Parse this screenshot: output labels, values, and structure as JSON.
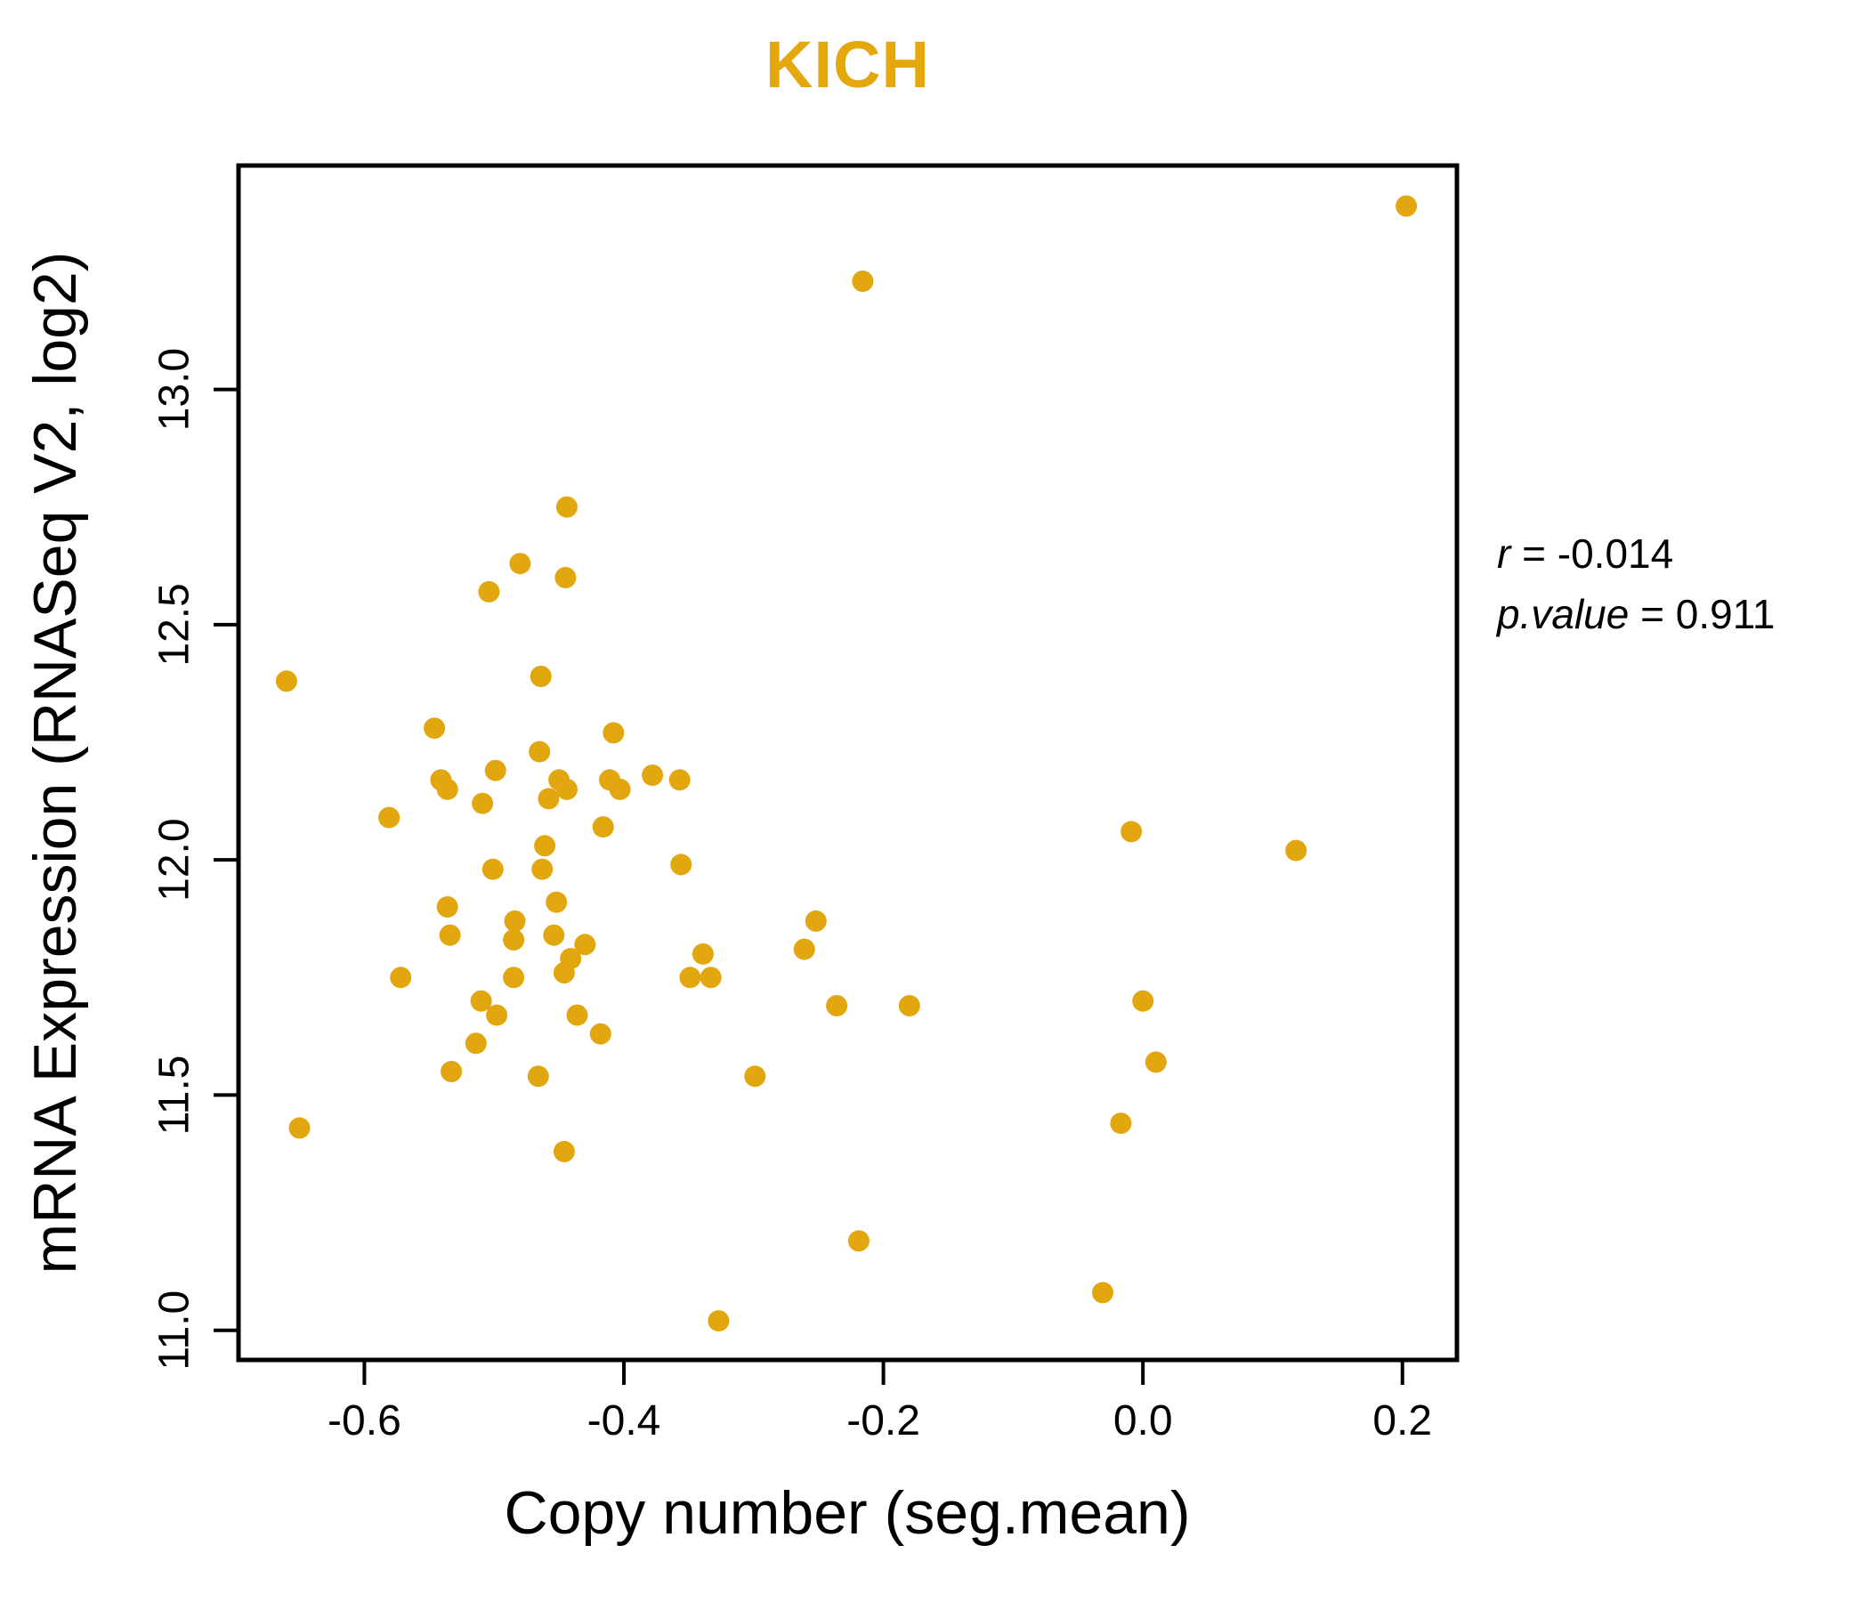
{
  "title": "KICH",
  "colors": {
    "accent": "#E4A80C",
    "point": "#E2A60E",
    "axis": "#000000",
    "background": "#ffffff"
  },
  "annotation": {
    "r_label": "r",
    "equals": " = ",
    "r_value": "-0.014",
    "p_label": "p.value",
    "p_value": "0.911"
  },
  "x_axis": {
    "label": "Copy number (seg.mean)",
    "tick_labels": [
      "-0.6",
      "-0.4",
      "-0.2",
      "0.0",
      "0.2"
    ],
    "tick_values": [
      -0.6,
      -0.4,
      -0.2,
      0.0,
      0.2
    ]
  },
  "y_axis": {
    "label": "mRNA Expression (RNASeq V2, log2)",
    "tick_labels": [
      "11.0",
      "11.5",
      "12.0",
      "12.5",
      "13.0"
    ],
    "tick_values": [
      11.0,
      11.5,
      12.0,
      12.5,
      13.0
    ]
  },
  "chart_data": {
    "type": "scatter",
    "title": "KICH",
    "xlabel": "Copy number (seg.mean)",
    "ylabel": "mRNA Expression (RNASeq V2, log2)",
    "xlim": [
      -0.697,
      0.242
    ],
    "ylim": [
      10.937,
      13.476
    ],
    "grid": false,
    "legend": "none",
    "r": -0.014,
    "p_value": 0.911,
    "points": [
      [
        0.203,
        13.39
      ],
      [
        -0.216,
        13.23
      ],
      [
        -0.444,
        12.75
      ],
      [
        -0.48,
        12.63
      ],
      [
        -0.445,
        12.6
      ],
      [
        -0.504,
        12.57
      ],
      [
        -0.464,
        12.39
      ],
      [
        -0.66,
        12.38
      ],
      [
        -0.546,
        12.28
      ],
      [
        -0.408,
        12.27
      ],
      [
        -0.465,
        12.23
      ],
      [
        -0.499,
        12.19
      ],
      [
        -0.378,
        12.18
      ],
      [
        -0.411,
        12.17
      ],
      [
        -0.541,
        12.17
      ],
      [
        -0.357,
        12.17
      ],
      [
        -0.45,
        12.17
      ],
      [
        -0.444,
        12.15
      ],
      [
        -0.536,
        12.15
      ],
      [
        -0.403,
        12.15
      ],
      [
        -0.458,
        12.13
      ],
      [
        -0.509,
        12.12
      ],
      [
        -0.581,
        12.09
      ],
      [
        -0.416,
        12.07
      ],
      [
        -0.009,
        12.06
      ],
      [
        -0.461,
        12.03
      ],
      [
        0.118,
        12.02
      ],
      [
        -0.501,
        11.98
      ],
      [
        -0.463,
        11.98
      ],
      [
        -0.356,
        11.99
      ],
      [
        -0.536,
        11.9
      ],
      [
        -0.452,
        11.91
      ],
      [
        -0.252,
        11.87
      ],
      [
        -0.484,
        11.87
      ],
      [
        -0.534,
        11.84
      ],
      [
        -0.485,
        11.83
      ],
      [
        -0.454,
        11.84
      ],
      [
        -0.43,
        11.82
      ],
      [
        -0.261,
        11.81
      ],
      [
        -0.339,
        11.8
      ],
      [
        -0.441,
        11.79
      ],
      [
        -0.349,
        11.75
      ],
      [
        -0.333,
        11.75
      ],
      [
        -0.446,
        11.76
      ],
      [
        -0.572,
        11.75
      ],
      [
        -0.485,
        11.75
      ],
      [
        -0.51,
        11.7
      ],
      [
        -0.236,
        11.69
      ],
      [
        -0.18,
        11.69
      ],
      [
        0.0,
        11.7
      ],
      [
        -0.498,
        11.67
      ],
      [
        -0.436,
        11.67
      ],
      [
        -0.418,
        11.63
      ],
      [
        -0.514,
        11.61
      ],
      [
        0.01,
        11.57
      ],
      [
        -0.533,
        11.55
      ],
      [
        -0.299,
        11.54
      ],
      [
        -0.466,
        11.54
      ],
      [
        -0.65,
        11.43
      ],
      [
        -0.017,
        11.44
      ],
      [
        -0.446,
        11.38
      ],
      [
        -0.219,
        11.19
      ],
      [
        -0.031,
        11.08
      ],
      [
        -0.327,
        11.02
      ]
    ]
  }
}
